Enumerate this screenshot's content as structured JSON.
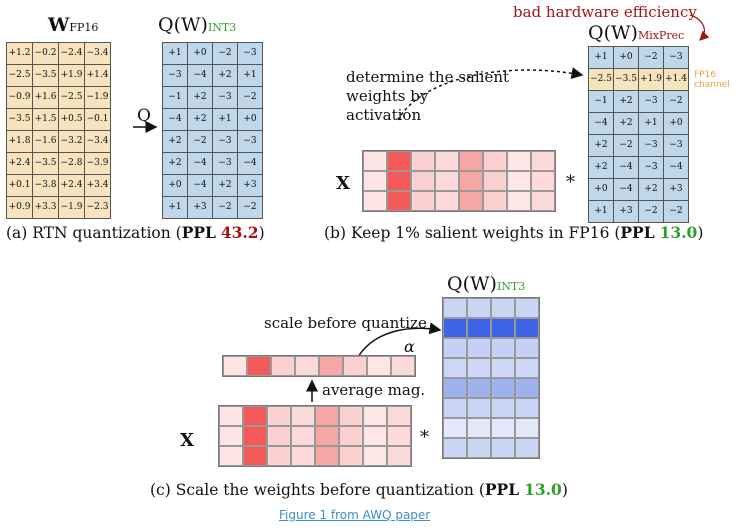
{
  "panel_a": {
    "w_label": "W",
    "w_sub": "FP16",
    "q_label": "Q(W)",
    "q_sub": "INT3",
    "op_label": "Q",
    "w_rows": [
      [
        "+1.2",
        "−0.2",
        "−2.4",
        "−3.4"
      ],
      [
        "−2.5",
        "−3.5",
        "+1.9",
        "+1.4"
      ],
      [
        "−0.9",
        "+1.6",
        "−2.5",
        "−1.9"
      ],
      [
        "−3.5",
        "+1.5",
        "+0.5",
        "−0.1"
      ],
      [
        "+1.8",
        "−1.6",
        "−3.2",
        "−3.4"
      ],
      [
        "+2.4",
        "−3.5",
        "−2.8",
        "−3.9"
      ],
      [
        "+0.1",
        "−3.8",
        "+2.4",
        "+3.4"
      ],
      [
        "+0.9",
        "+3.3",
        "−1.9",
        "−2.3"
      ]
    ],
    "q_rows": [
      [
        "+1",
        "+0",
        "−2",
        "−3"
      ],
      [
        "−3",
        "−4",
        "+2",
        "+1"
      ],
      [
        "−1",
        "+2",
        "−3",
        "−2"
      ],
      [
        "−4",
        "+2",
        "+1",
        "+0"
      ],
      [
        "+2",
        "−2",
        "−3",
        "−3"
      ],
      [
        "+2",
        "−4",
        "−3",
        "−4"
      ],
      [
        "+0",
        "−4",
        "+2",
        "+3"
      ],
      [
        "+1",
        "+3",
        "−2",
        "−2"
      ]
    ],
    "caption_pre": "(a) RTN quantization (",
    "caption_ppl": "PPL",
    "caption_val": "43.2",
    "caption_post": ")"
  },
  "panel_b": {
    "annotation": "bad hardware efficiency",
    "q_label": "Q(W)",
    "q_sub": "MixPrec",
    "salient_text_1": "determine the salient",
    "salient_text_2": "weights by",
    "salient_text_3": "activation",
    "x_label": "X",
    "mult": "*",
    "fp16_label_1": "FP16",
    "fp16_label_2": "channel",
    "q_rows": [
      [
        "+1",
        "+0",
        "−2",
        "−3"
      ],
      [
        "−2.5",
        "−3.5",
        "+1.9",
        "+1.4"
      ],
      [
        "−1",
        "+2",
        "−3",
        "−2"
      ],
      [
        "−4",
        "+2",
        "+1",
        "+0"
      ],
      [
        "+2",
        "−2",
        "−3",
        "−3"
      ],
      [
        "+2",
        "−4",
        "−3",
        "−4"
      ],
      [
        "+0",
        "−4",
        "+2",
        "+3"
      ],
      [
        "+1",
        "+3",
        "−2",
        "−2"
      ]
    ],
    "caption_pre": "(b) Keep 1% salient weights in FP16 (",
    "caption_ppl": "PPL",
    "caption_val": "13.0",
    "caption_post": ")"
  },
  "panel_c": {
    "q_label": "Q(W)",
    "q_sub": "INT3",
    "scale_text": "scale before quantize",
    "alpha": "α",
    "avg_text": "average mag.",
    "x_label": "X",
    "mult": "*",
    "caption_pre": "(c) Scale the weights before quantization (",
    "caption_ppl": "PPL",
    "caption_val": "13.0",
    "caption_post": ")"
  },
  "colors": {
    "red_text": "#a31515",
    "green_text": "#2e9e2e",
    "fp16_orange": "#e8a23a",
    "link_blue": "#3d8fc7"
  },
  "footer": {
    "link_text": "Figure 1 from AWQ paper"
  }
}
